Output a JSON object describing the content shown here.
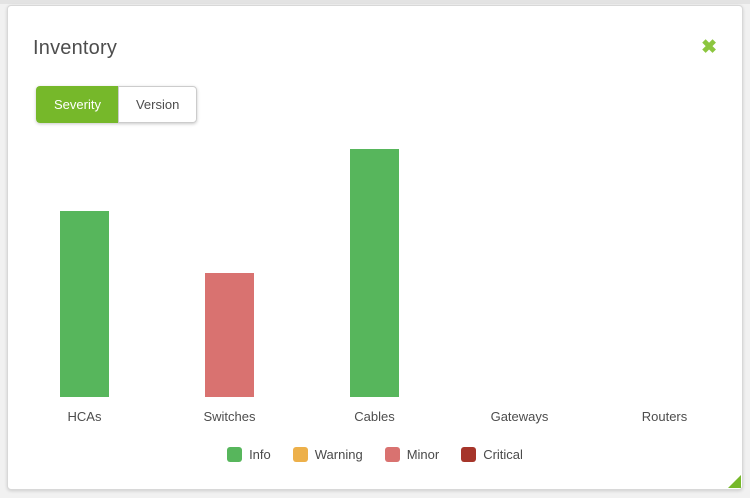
{
  "header": {
    "title": "Inventory",
    "close_icon": "✖"
  },
  "tabs": [
    {
      "label": "Severity",
      "active": true
    },
    {
      "label": "Version",
      "active": false
    }
  ],
  "colors": {
    "brand_green": "#76b82a",
    "close_icon_green": "#8cc63f",
    "info": "#57b65c",
    "warning": "#edb04a",
    "minor": "#d97270",
    "critical": "#a6352a",
    "text": "#4d4d4d",
    "panel_background": "#ffffff",
    "page_background": "#f1f1f1"
  },
  "chart_data": {
    "type": "bar",
    "stacked": true,
    "title": "",
    "xlabel": "",
    "ylabel": "",
    "categories": [
      "HCAs",
      "Switches",
      "Cables",
      "Gateways",
      "Routers"
    ],
    "series": [
      {
        "name": "Info",
        "color": "#57b65c",
        "values": [
          3,
          0,
          4,
          0,
          0
        ]
      },
      {
        "name": "Warning",
        "color": "#edb04a",
        "values": [
          0,
          0,
          0,
          0,
          0
        ]
      },
      {
        "name": "Minor",
        "color": "#d97270",
        "values": [
          0,
          2,
          0,
          0,
          0
        ]
      },
      {
        "name": "Critical",
        "color": "#a6352a",
        "values": [
          0,
          0,
          0,
          0,
          0
        ]
      }
    ],
    "ylim": [
      0,
      4
    ],
    "y_axis_visible": false,
    "grid": false,
    "legend_position": "bottom"
  }
}
